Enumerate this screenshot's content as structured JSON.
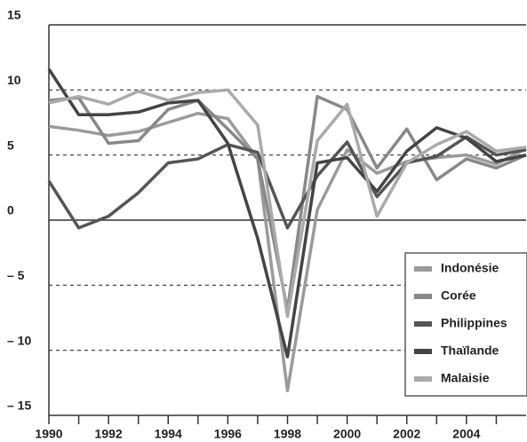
{
  "chart_data": {
    "type": "line",
    "x": [
      1990,
      1991,
      1992,
      1993,
      1994,
      1995,
      1996,
      1997,
      1998,
      1999,
      2000,
      2001,
      2002,
      2003,
      2004,
      2005,
      2006
    ],
    "series": [
      {
        "name": "Indonésie",
        "color": "#9a9a9a",
        "values": [
          7.2,
          6.9,
          6.5,
          6.8,
          7.5,
          8.2,
          7.8,
          4.7,
          -13.1,
          0.8,
          5.4,
          3.6,
          4.5,
          4.8,
          5.0,
          4.3,
          5.5
        ]
      },
      {
        "name": "Corée",
        "color": "#888888",
        "values": [
          9.2,
          9.4,
          5.9,
          6.1,
          8.5,
          9.2,
          7.0,
          4.7,
          -6.9,
          9.5,
          8.5,
          4.0,
          7.0,
          3.1,
          4.7,
          4.0,
          5.0
        ]
      },
      {
        "name": "Philippines",
        "color": "#555555",
        "values": [
          3.0,
          -0.6,
          0.3,
          2.1,
          4.4,
          4.7,
          5.8,
          5.2,
          -0.6,
          3.4,
          6.0,
          1.8,
          4.4,
          4.9,
          6.4,
          5.0,
          5.4
        ]
      },
      {
        "name": "Thaïlande",
        "color": "#444444",
        "values": [
          11.6,
          8.1,
          8.1,
          8.3,
          9.0,
          9.2,
          5.9,
          -1.4,
          -10.5,
          4.4,
          4.8,
          2.2,
          5.3,
          7.1,
          6.3,
          4.5,
          5.0
        ]
      },
      {
        "name": "Malaisie",
        "color": "#aaaaaa",
        "values": [
          9.0,
          9.5,
          8.9,
          9.9,
          9.2,
          9.8,
          10.0,
          7.3,
          -7.4,
          6.1,
          8.9,
          0.3,
          4.4,
          5.8,
          6.8,
          5.3,
          5.6
        ]
      }
    ],
    "xlim": [
      1990,
      2006
    ],
    "xticks": [
      1990,
      1992,
      1994,
      1996,
      1998,
      2000,
      2002,
      2004
    ],
    "ylim": [
      -15,
      15
    ],
    "yticks": [
      {
        "value": -15,
        "label": "– 15"
      },
      {
        "value": -10,
        "label": "– 10"
      },
      {
        "value": -5,
        "label": "– 5"
      },
      0,
      5,
      10,
      15
    ],
    "grid": true,
    "legend": "lower right"
  }
}
